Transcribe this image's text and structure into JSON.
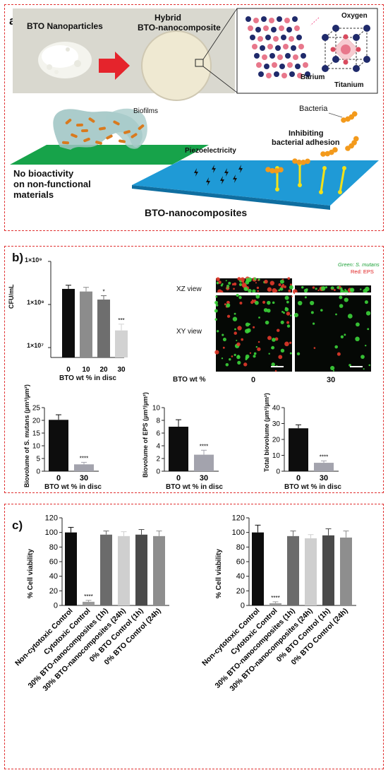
{
  "panel_a": {
    "label": "a)",
    "nanoparticles_label": "BTO Nanoparticles",
    "hybrid_label_1": "Hybrid",
    "hybrid_label_2": "BTO-nanocomposite",
    "crystal": {
      "oxygen": "Oxygen",
      "barium": "Barium",
      "titanium": "Titanium"
    },
    "biofilms": "Biofilms",
    "bacteria": "Bacteria",
    "piezo": "Piezoelectricity",
    "inhibit_1": "Inhibiting",
    "inhibit_2": "bacterial adhesion",
    "no_bio_1": "No bioactivity",
    "no_bio_2": "on non-functional",
    "no_bio_3": "materials",
    "bto_nc": "BTO-nanocomposites"
  },
  "panel_b": {
    "label": "b)",
    "cfu": {
      "ylabel": "CFU/mL",
      "yticks": [
        "1×10⁹",
        "1×10⁸",
        "1×10⁷"
      ],
      "xlabel": "BTO wt % in disc",
      "categories": [
        "0",
        "10",
        "20",
        "30"
      ],
      "sig": [
        "",
        "",
        "*",
        "***"
      ]
    },
    "micro": {
      "legend_green": "Green: S. mutans",
      "legend_red": "Red: EPS",
      "xz": "XZ view",
      "xy": "XY view",
      "bto_wt": "BTO wt %",
      "col0": "0",
      "col30": "30"
    },
    "bv1": {
      "ylabel": "Biovolume of S. mutans (µm³/µm²)",
      "xlabel": "BTO wt % in disc",
      "sig": "****"
    },
    "bv2": {
      "ylabel": "Biovolume of EPS (µm³/µm²)",
      "xlabel": "BTO wt % in disc",
      "sig": "****"
    },
    "bv3": {
      "ylabel": "Total biovolume (µm³/µm²)",
      "xlabel": "BTO wt % in disc",
      "sig": "****"
    }
  },
  "panel_c": {
    "label": "c)",
    "ylabel": "% Cell viability",
    "sig": "****"
  },
  "chart_data": [
    {
      "id": "cfu",
      "type": "bar",
      "categories": [
        "0",
        "10",
        "20",
        "30"
      ],
      "values": [
        230000000,
        200000000,
        130000000,
        25000000
      ],
      "errors": [
        50000000,
        50000000,
        30000000,
        10000000
      ],
      "ylim": [
        10000000,
        1000000000
      ],
      "yscale": "log",
      "ylabel": "CFU/mL",
      "xlabel": "BTO wt % in disc",
      "colors": [
        "#0d0d0d",
        "#8c8c8c",
        "#6e6e6e",
        "#d2d2d2"
      ]
    },
    {
      "id": "bv1",
      "type": "bar",
      "categories": [
        "0",
        "30"
      ],
      "values": [
        20.2,
        2.7
      ],
      "errors": [
        2.0,
        0.8
      ],
      "ylim": [
        0,
        25
      ],
      "yticks": [
        0,
        5,
        10,
        15,
        20,
        25
      ],
      "ylabel": "Biovolume of S. mutans (µm³/µm²)",
      "xlabel": "BTO wt % in disc",
      "colors": [
        "#0d0d0d",
        "#a3a3ad"
      ]
    },
    {
      "id": "bv2",
      "type": "bar",
      "categories": [
        "0",
        "30"
      ],
      "values": [
        7.0,
        2.6
      ],
      "errors": [
        1.1,
        0.7
      ],
      "ylim": [
        0,
        10
      ],
      "yticks": [
        0,
        2,
        4,
        6,
        8,
        10
      ],
      "ylabel": "Biovolume of EPS (µm³/µm²)",
      "xlabel": "BTO wt % in disc",
      "colors": [
        "#0d0d0d",
        "#a3a3ad"
      ]
    },
    {
      "id": "bv3",
      "type": "bar",
      "categories": [
        "0",
        "30"
      ],
      "values": [
        27,
        5.3
      ],
      "errors": [
        2.2,
        1.2
      ],
      "ylim": [
        0,
        40
      ],
      "yticks": [
        0,
        10,
        20,
        30,
        40
      ],
      "ylabel": "Total biovolume (µm³/µm²)",
      "xlabel": "BTO wt % in disc",
      "colors": [
        "#0d0d0d",
        "#a3a3ad"
      ]
    },
    {
      "id": "cv1",
      "type": "bar",
      "categories": [
        "Non-cytotoxic Control",
        "Cytotoxic Control",
        "30% BTO-nanocomposites (1h)",
        "30% BTO-nanocomposites (24h)",
        "0% BTO Control (1h)",
        "0% BTO Control (24h)"
      ],
      "values": [
        100,
        5,
        97,
        95,
        97,
        95
      ],
      "errors": [
        7,
        2,
        5,
        6,
        7,
        7
      ],
      "ylim": [
        0,
        120
      ],
      "yticks": [
        0,
        20,
        40,
        60,
        80,
        100,
        120
      ],
      "ylabel": "% Cell viability",
      "colors": [
        "#0d0d0d",
        "#9a9a9a",
        "#6b6b6b",
        "#cfcfcf",
        "#4a4a4a",
        "#8e8e8e"
      ]
    },
    {
      "id": "cv2",
      "type": "bar",
      "categories": [
        "Non-cytotoxic Control",
        "Cytotoxic Control",
        "30% BTO-nanocomposites (1h)",
        "30% BTO-nanocomposites (24h)",
        "0% BTO Control (1h)",
        "0% BTO Control (24h)"
      ],
      "values": [
        100,
        3,
        95,
        92,
        96,
        93
      ],
      "errors": [
        10,
        2,
        7,
        5,
        9,
        9
      ],
      "ylim": [
        0,
        120
      ],
      "yticks": [
        0,
        20,
        40,
        60,
        80,
        100,
        120
      ],
      "ylabel": "% Cell viability",
      "colors": [
        "#0d0d0d",
        "#9a9a9a",
        "#6b6b6b",
        "#cfcfcf",
        "#4a4a4a",
        "#8e8e8e"
      ]
    }
  ]
}
